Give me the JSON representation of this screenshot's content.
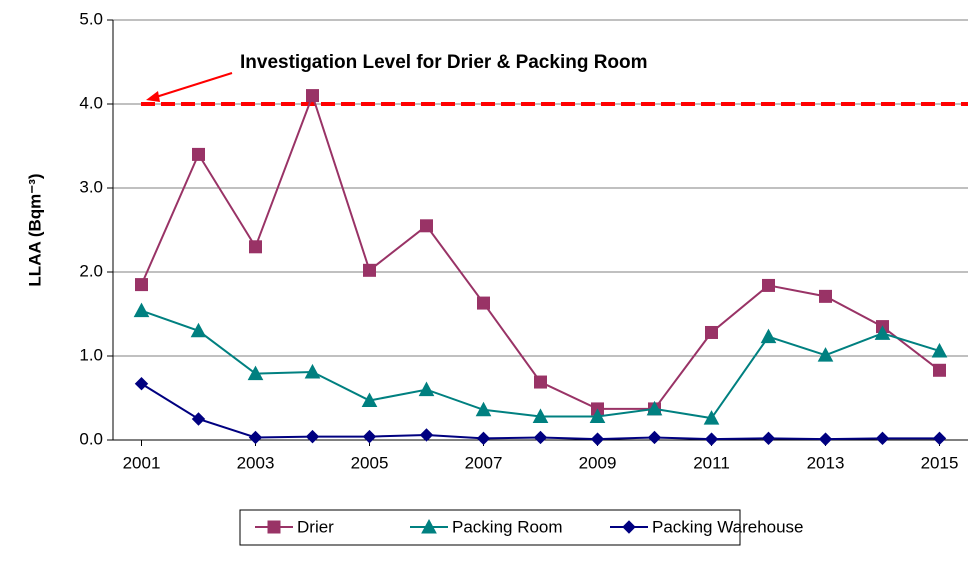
{
  "chart_data": {
    "type": "line",
    "y_label": "LLAA (Bqm⁻³)",
    "x": [
      2001,
      2002,
      2003,
      2004,
      2005,
      2006,
      2007,
      2008,
      2009,
      2010,
      2011,
      2012,
      2013,
      2014,
      2015
    ],
    "xlim": [
      2000.5,
      2015.5
    ],
    "xticks": [
      2001,
      2003,
      2005,
      2007,
      2009,
      2011,
      2013,
      2015
    ],
    "ylim": [
      0,
      5
    ],
    "yticks": [
      {
        "value": 0,
        "label": "0.0"
      },
      {
        "value": 1,
        "label": "1.0"
      },
      {
        "value": 2,
        "label": "2.0"
      },
      {
        "value": 3,
        "label": "3.0"
      },
      {
        "value": 4,
        "label": "4.0"
      },
      {
        "value": 5,
        "label": "5.0"
      }
    ],
    "grid": true,
    "legend": "bottom",
    "series": [
      {
        "name": "Drier",
        "color": "#993366",
        "marker": "square",
        "values": [
          1.85,
          3.4,
          2.3,
          4.1,
          2.02,
          2.55,
          1.63,
          0.69,
          0.37,
          0.37,
          1.28,
          1.84,
          1.71,
          1.35,
          0.83
        ]
      },
      {
        "name": "Packing Room",
        "color": "#008080",
        "marker": "triangle",
        "values": [
          1.54,
          1.3,
          0.79,
          0.81,
          0.47,
          0.6,
          0.36,
          0.28,
          0.28,
          0.37,
          0.26,
          1.23,
          1.01,
          1.27,
          1.06
        ]
      },
      {
        "name": "Packing Warehouse",
        "color": "#000080",
        "marker": "diamond",
        "values": [
          0.67,
          0.25,
          0.03,
          0.04,
          0.04,
          0.06,
          0.02,
          0.03,
          0.01,
          0.03,
          0.01,
          0.02,
          0.01,
          0.02,
          0.02
        ]
      }
    ],
    "reference_line": {
      "value": 4,
      "color": "#ff0000",
      "label": "Investigation Level for Drier & Packing Room"
    }
  }
}
